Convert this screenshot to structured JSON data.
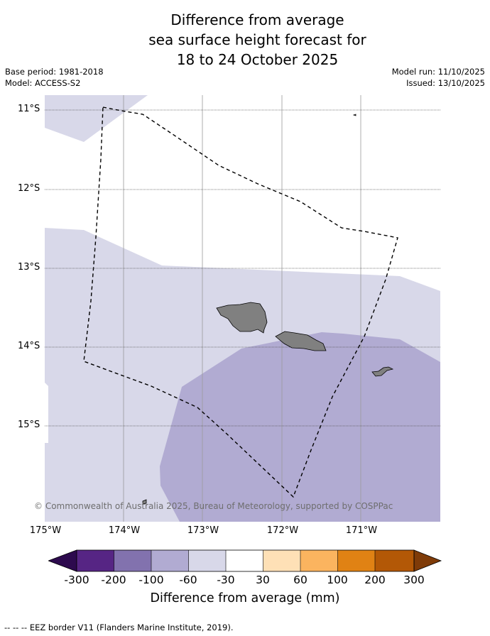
{
  "title": {
    "line1": "Difference from average",
    "line2": "sea surface height forecast for",
    "line3": "18 to 24 October 2025"
  },
  "meta": {
    "base_period": "Base period: 1981-2018",
    "model": "Model: ACCESS-S2",
    "model_run": "Model run: 11/10/2025",
    "issued": "Issued: 13/10/2025"
  },
  "map": {
    "latitude_labels": [
      "11°S",
      "12°S",
      "13°S",
      "14°S",
      "15°S"
    ],
    "longitude_labels": [
      "175°W",
      "174°W",
      "173°W",
      "172°W",
      "171°W"
    ],
    "copyright": "© Commonwealth of Australia 2025, Bureau of Meteorology, supported by COSPPac",
    "colors": {
      "band_-60_-30": "#d8d8e9",
      "band_-100_-60": "#b1abd2",
      "land": "#808080",
      "eez_line": "#000000"
    }
  },
  "colorbar": {
    "ticks": [
      "-300",
      "-200",
      "-100",
      "-60",
      "-30",
      "30",
      "60",
      "100",
      "200",
      "300"
    ],
    "label": "Difference from average (mm)",
    "colors": [
      "#2d0a4e",
      "#562584",
      "#8272ae",
      "#b1abd2",
      "#d8d8e9",
      "#ffffff",
      "#fee0b6",
      "#fbb45f",
      "#e08214",
      "#b35806",
      "#7f3b08"
    ]
  },
  "legend": {
    "eez_label": "--  --  -- EEZ border V11 (Flanders Marine Institute, 2019)."
  }
}
